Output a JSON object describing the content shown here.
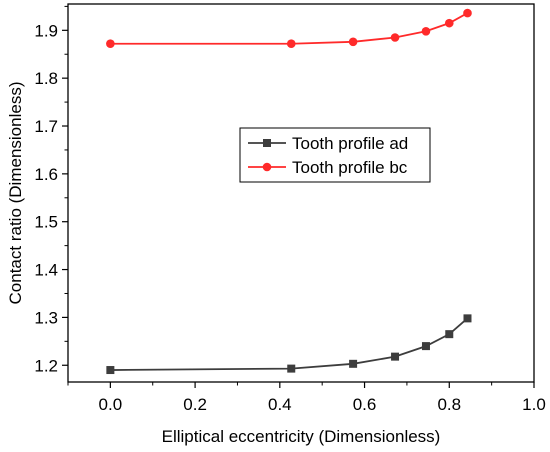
{
  "chart_data": {
    "type": "line",
    "xlabel": "Elliptical eccentricity (Dimensionless)",
    "ylabel": "Contact ratio (Dimensionless)",
    "xlim": [
      -0.1,
      1.0
    ],
    "ylim": [
      1.165,
      1.955
    ],
    "xticks": [
      "0.0",
      "0.2",
      "0.4",
      "0.6",
      "0.8",
      "1.0"
    ],
    "xtick_values": [
      0.0,
      0.2,
      0.4,
      0.6,
      0.8,
      1.0
    ],
    "yticks": [
      "1.2",
      "1.3",
      "1.4",
      "1.5",
      "1.6",
      "1.7",
      "1.8",
      "1.9"
    ],
    "ytick_values": [
      1.2,
      1.3,
      1.4,
      1.5,
      1.6,
      1.7,
      1.8,
      1.9
    ],
    "grid": false,
    "legend_position": "center-right",
    "series": [
      {
        "name": "Tooth profile ad",
        "color": "#3d3d3d",
        "marker": "square",
        "x": [
          0.0,
          0.427,
          0.573,
          0.672,
          0.745,
          0.8,
          0.843
        ],
        "y": [
          1.19,
          1.193,
          1.203,
          1.218,
          1.24,
          1.265,
          1.298
        ]
      },
      {
        "name": "Tooth profile bc",
        "color": "#ff2a2a",
        "marker": "circle",
        "x": [
          0.0,
          0.427,
          0.573,
          0.672,
          0.745,
          0.8,
          0.843
        ],
        "y": [
          1.872,
          1.872,
          1.876,
          1.885,
          1.898,
          1.915,
          1.936
        ]
      }
    ]
  }
}
